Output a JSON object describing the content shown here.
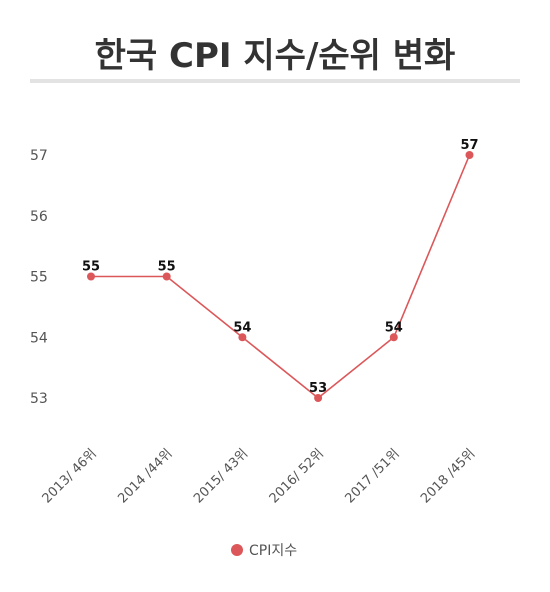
{
  "title": "한국 CPI 지수/순위 변화",
  "colors": {
    "series": "#dc5759",
    "title_rule": "#e3e3e3"
  },
  "chart_data": {
    "type": "line",
    "title": "한국 CPI 지수/순위 변화",
    "xlabel": "",
    "ylabel": "",
    "categories": [
      "2013/ 46위",
      "2014 /44위",
      "2015/ 43위",
      "2016/ 52위",
      "2017 /51위",
      "2018 /45위"
    ],
    "series": [
      {
        "name": "CPI지수",
        "values": [
          55,
          55,
          54,
          53,
          54,
          57
        ],
        "data_labels": [
          "55",
          "55",
          "54",
          "53",
          "54",
          "57"
        ]
      }
    ],
    "yticks": [
      53,
      54,
      55,
      56,
      57
    ],
    "ylim": [
      52.6,
      57.2
    ],
    "grid": false,
    "legend": "bottom-center"
  }
}
